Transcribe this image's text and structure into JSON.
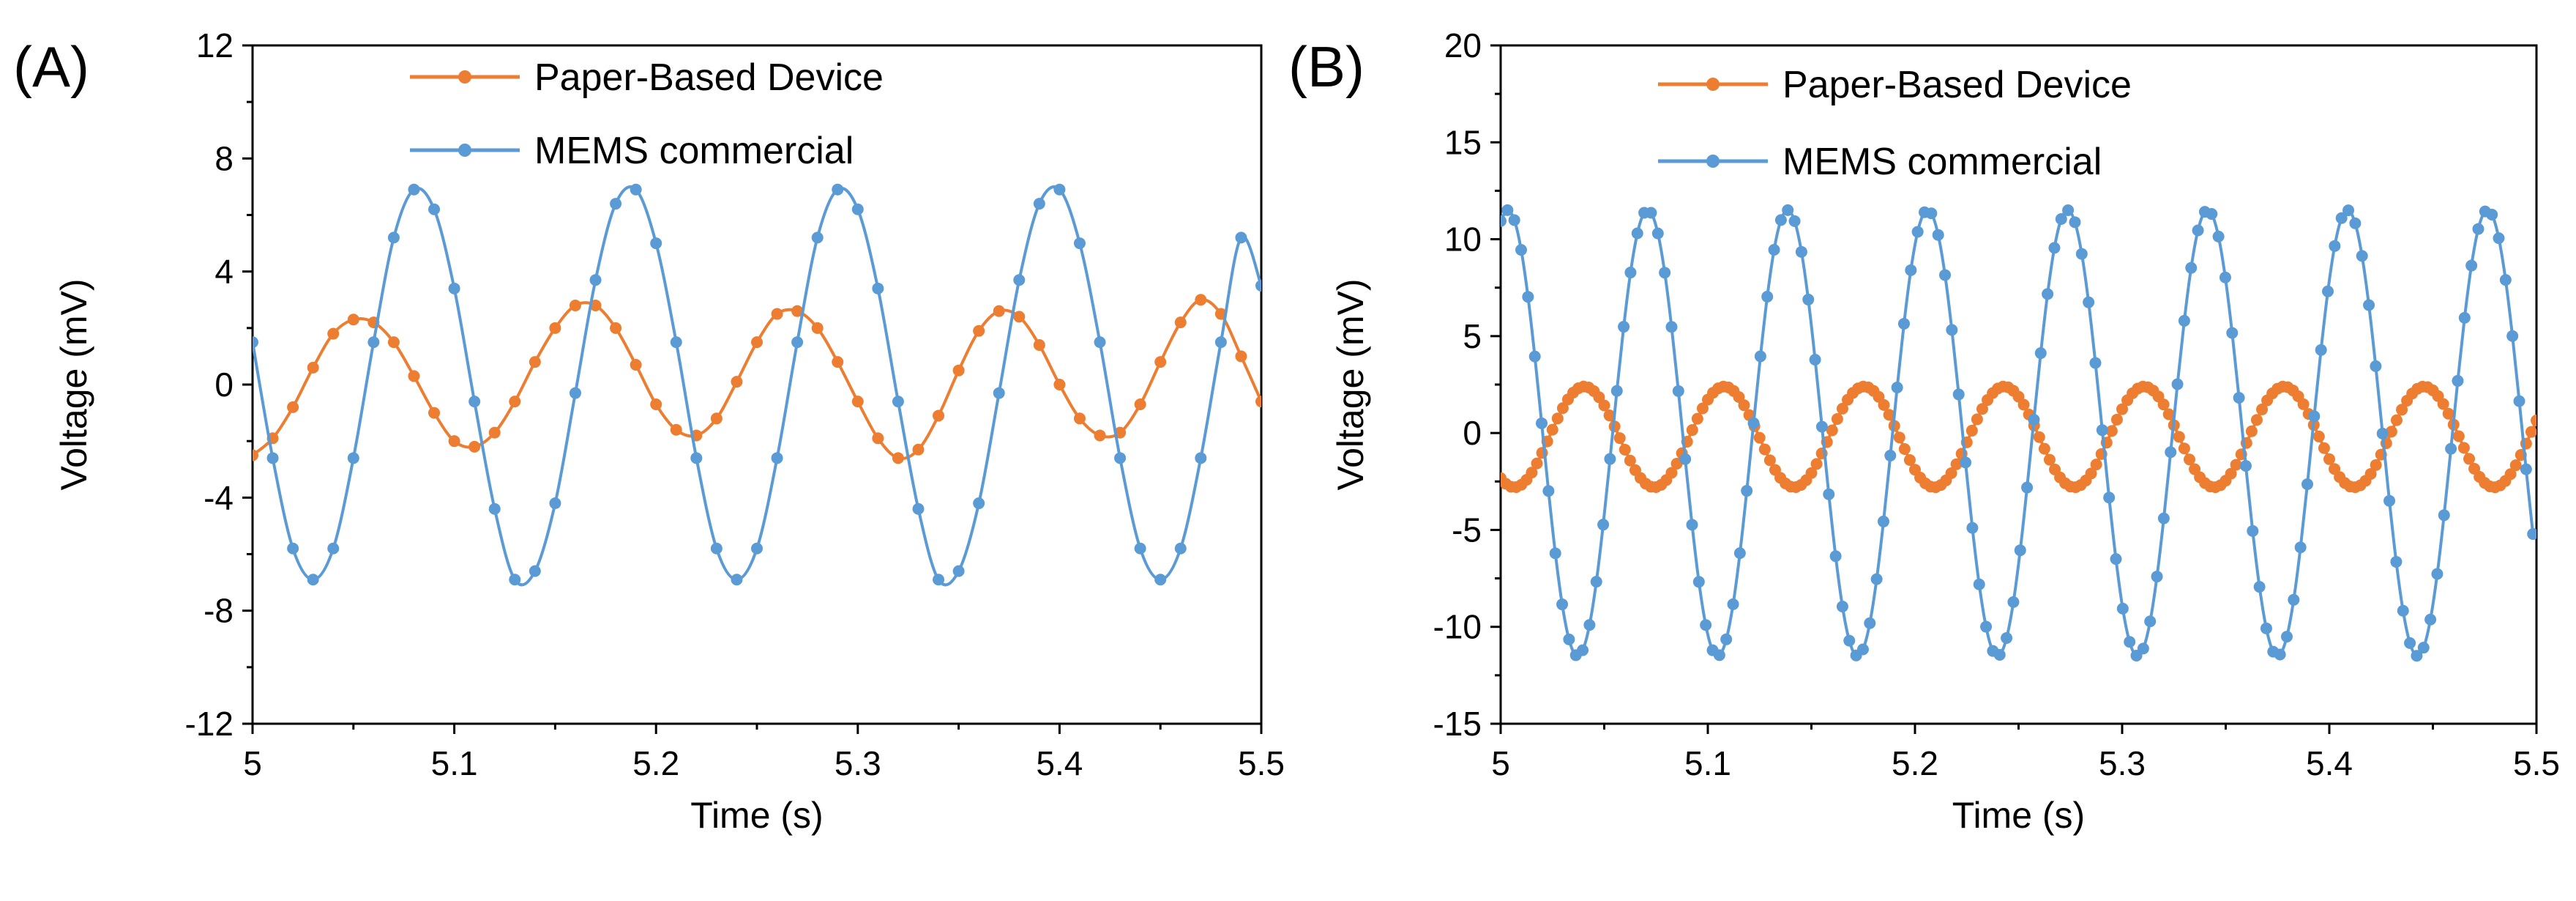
{
  "chart_data": [
    {
      "type": "line",
      "panel_label": "(A)",
      "xlabel": "Time (s)",
      "ylabel": "Voltage (mV)",
      "xlim": [
        5,
        5.5
      ],
      "ylim": [
        -12,
        12
      ],
      "x_ticks": [
        5,
        5.1,
        5.2,
        5.3,
        5.4,
        5.5
      ],
      "x_tick_labels": [
        "5",
        "5.1",
        "5.2",
        "5.3",
        "5.4",
        "5.5"
      ],
      "y_ticks": [
        -12,
        -8,
        -4,
        0,
        4,
        8,
        12
      ],
      "y_tick_labels": [
        "-12",
        "-8",
        "-4",
        "0",
        "4",
        "8",
        "12"
      ],
      "legend_position": "top-center",
      "grid": false,
      "series": [
        {
          "name": "Paper-Based Device",
          "color": "#ED7D31",
          "x": [
            5.0,
            5.01,
            5.02,
            5.03,
            5.04,
            5.05,
            5.06,
            5.07,
            5.08,
            5.09,
            5.1,
            5.11,
            5.12,
            5.13,
            5.14,
            5.15,
            5.16,
            5.17,
            5.18,
            5.19,
            5.2,
            5.21,
            5.22,
            5.23,
            5.24,
            5.25,
            5.26,
            5.27,
            5.28,
            5.29,
            5.3,
            5.31,
            5.32,
            5.33,
            5.34,
            5.35,
            5.36,
            5.37,
            5.38,
            5.39,
            5.4,
            5.41,
            5.42,
            5.43,
            5.44,
            5.45,
            5.46,
            5.47,
            5.48,
            5.49,
            5.5
          ],
          "y": [
            -2.5,
            -1.9,
            -0.8,
            0.6,
            1.8,
            2.3,
            2.2,
            1.5,
            0.3,
            -1.0,
            -2.0,
            -2.2,
            -1.7,
            -0.6,
            0.8,
            2.0,
            2.8,
            2.8,
            2.0,
            0.7,
            -0.7,
            -1.6,
            -1.8,
            -1.2,
            0.1,
            1.5,
            2.5,
            2.6,
            2.0,
            0.8,
            -0.6,
            -1.9,
            -2.6,
            -2.3,
            -1.1,
            0.5,
            1.9,
            2.6,
            2.4,
            1.4,
            0.0,
            -1.2,
            -1.8,
            -1.7,
            -0.7,
            0.8,
            2.2,
            3.0,
            2.5,
            1.0,
            -0.6
          ]
        },
        {
          "name": "MEMS commercial",
          "color": "#5B9BD5",
          "x": [
            5.0,
            5.01,
            5.02,
            5.03,
            5.04,
            5.05,
            5.06,
            5.07,
            5.08,
            5.09,
            5.1,
            5.11,
            5.12,
            5.13,
            5.14,
            5.15,
            5.16,
            5.17,
            5.18,
            5.19,
            5.2,
            5.21,
            5.22,
            5.23,
            5.24,
            5.25,
            5.26,
            5.27,
            5.28,
            5.29,
            5.3,
            5.31,
            5.32,
            5.33,
            5.34,
            5.35,
            5.36,
            5.37,
            5.38,
            5.39,
            5.4,
            5.41,
            5.42,
            5.43,
            5.44,
            5.45,
            5.46,
            5.47,
            5.48,
            5.49,
            5.5
          ],
          "y": [
            1.5,
            -2.6,
            -5.8,
            -6.9,
            -5.8,
            -2.6,
            1.5,
            5.2,
            6.9,
            6.2,
            3.4,
            -0.6,
            -4.4,
            -6.9,
            -6.6,
            -4.2,
            -0.3,
            3.7,
            6.4,
            6.9,
            5.0,
            1.5,
            -2.6,
            -5.8,
            -6.9,
            -5.8,
            -2.6,
            1.5,
            5.2,
            6.9,
            6.2,
            3.4,
            -0.6,
            -4.4,
            -6.9,
            -6.6,
            -4.2,
            -0.3,
            3.7,
            6.4,
            6.9,
            5.0,
            1.5,
            -2.6,
            -5.8,
            -6.9,
            -5.8,
            -2.6,
            1.5,
            5.2,
            3.5
          ]
        }
      ]
    },
    {
      "type": "line",
      "panel_label": "(B)",
      "xlabel": "Time (s)",
      "ylabel": "Voltage (mV)",
      "xlim": [
        5,
        5.5
      ],
      "ylim": [
        -15,
        20
      ],
      "x_ticks": [
        5,
        5.1,
        5.2,
        5.3,
        5.4,
        5.5
      ],
      "x_tick_labels": [
        "5",
        "5.1",
        "5.2",
        "5.3",
        "5.4",
        "5.5"
      ],
      "y_ticks": [
        -15,
        -10,
        -5,
        0,
        5,
        10,
        15,
        20
      ],
      "y_tick_labels": [
        "-15",
        "-10",
        "-5",
        "0",
        "5",
        "10",
        "15",
        "20"
      ],
      "legend_position": "top-center",
      "grid": false,
      "series": [
        {
          "name": "Paper-Based Device",
          "color": "#ED7D31",
          "frequency_hz": 14.8,
          "amplitude": 2.6,
          "offset": -0.2,
          "phase_deg": -125,
          "sample_step_s": 0.0025,
          "x_range": [
            5,
            5.5
          ]
        },
        {
          "name": "MEMS commercial",
          "color": "#5B9BD5",
          "frequency_hz": 14.8,
          "amplitude": 11.5,
          "offset": 0.0,
          "phase_deg": 72,
          "sample_step_s": 0.0033,
          "x_range": [
            5,
            5.5
          ]
        }
      ]
    }
  ]
}
